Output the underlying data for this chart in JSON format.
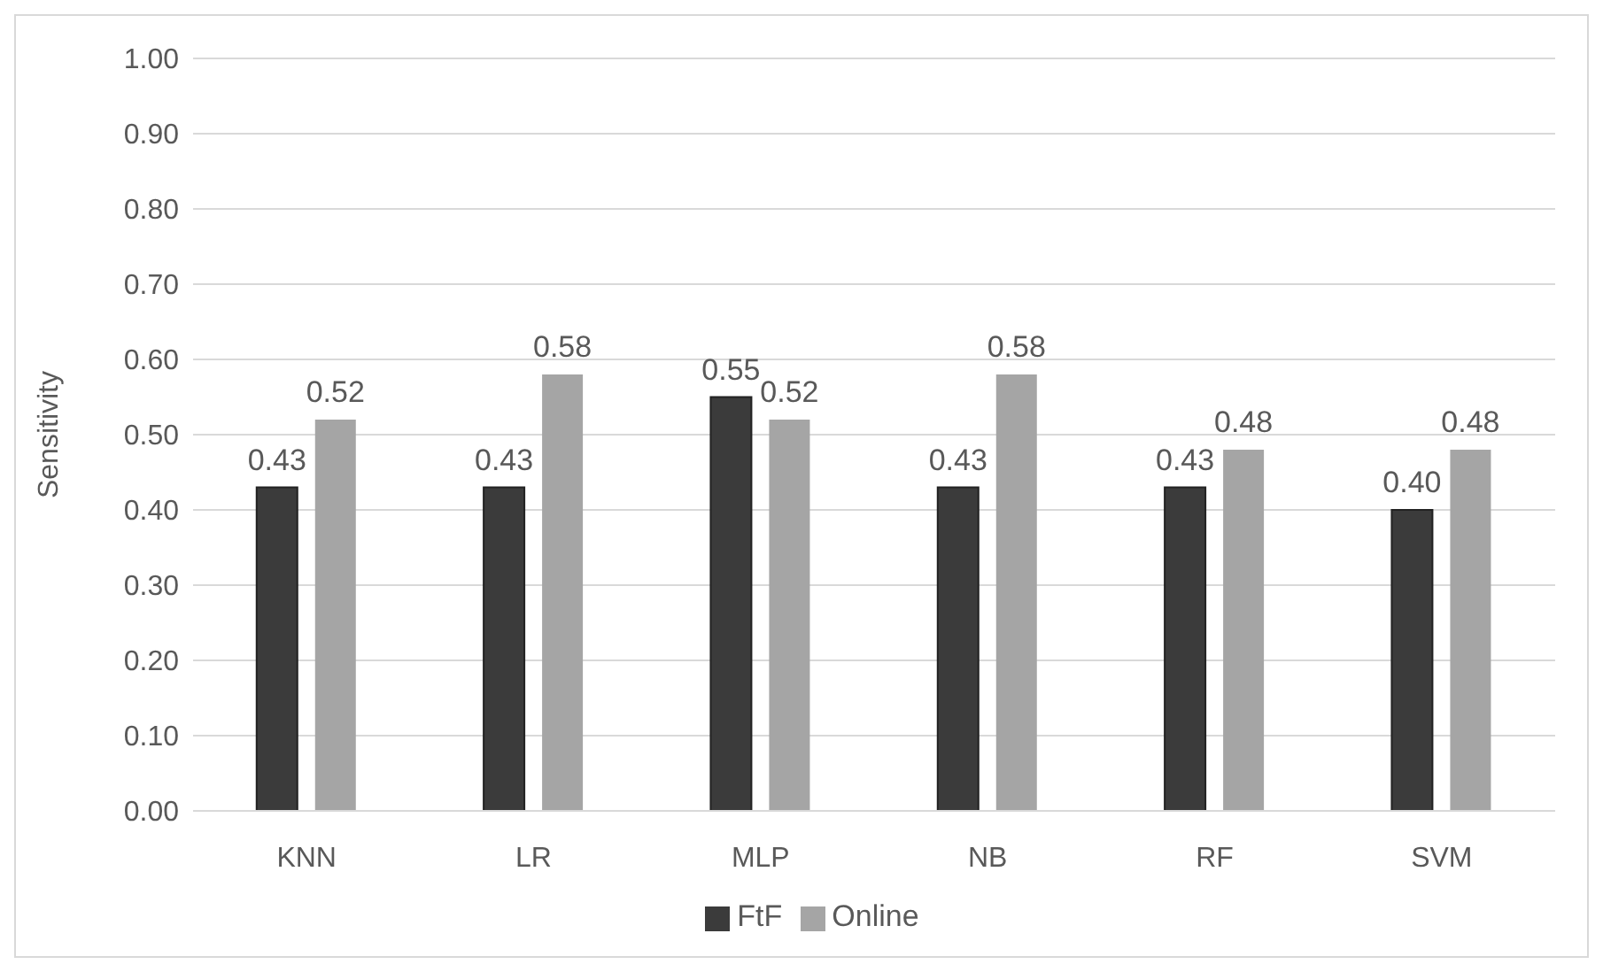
{
  "chart_data": {
    "type": "bar",
    "ylabel": "Sensitivity",
    "categories": [
      "KNN",
      "LR",
      "MLP",
      "NB",
      "RF",
      "SVM"
    ],
    "series": [
      {
        "name": "FtF",
        "color": "#3b3b3b",
        "values": [
          0.43,
          0.43,
          0.55,
          0.43,
          0.43,
          0.4
        ],
        "value_labels": [
          "0.43",
          "0.43",
          "0.55",
          "0.43",
          "0.43",
          "0.40"
        ]
      },
      {
        "name": "Online",
        "color": "#a5a5a5",
        "values": [
          0.52,
          0.58,
          0.52,
          0.58,
          0.48,
          0.48
        ],
        "value_labels": [
          "0.52",
          "0.58",
          "0.52",
          "0.58",
          "0.48",
          "0.48"
        ]
      }
    ],
    "ylim": [
      0,
      1
    ],
    "yticks": [
      {
        "value": 0,
        "label": "0.00"
      },
      {
        "value": 0.1,
        "label": "0.10"
      },
      {
        "value": 0.2,
        "label": "0.20"
      },
      {
        "value": 0.3,
        "label": "0.30"
      },
      {
        "value": 0.4,
        "label": "0.40"
      },
      {
        "value": 0.5,
        "label": "0.50"
      },
      {
        "value": 0.6,
        "label": "0.60"
      },
      {
        "value": 0.7,
        "label": "0.70"
      },
      {
        "value": 0.8,
        "label": "0.80"
      },
      {
        "value": 0.9,
        "label": "0.90"
      },
      {
        "value": 1,
        "label": "1.00"
      }
    ],
    "grid": "y",
    "legend": "bottom"
  }
}
